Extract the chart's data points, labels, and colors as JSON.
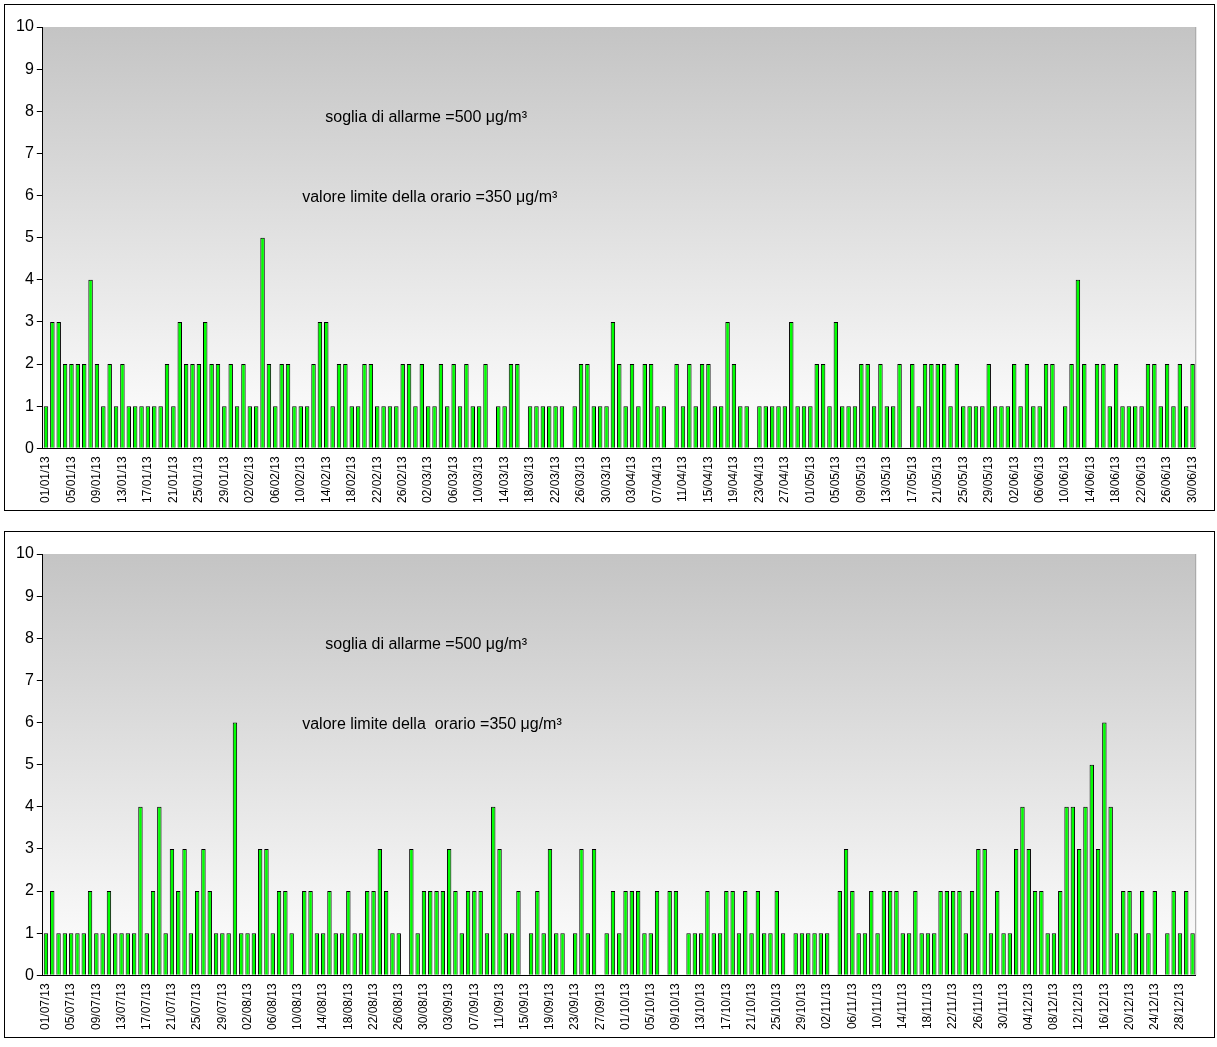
{
  "chart_data": [
    {
      "type": "bar",
      "color": "#00ff00",
      "ylim": [
        0,
        10
      ],
      "yticks": [
        0,
        1,
        2,
        3,
        4,
        5,
        6,
        7,
        8,
        9,
        10
      ],
      "annotations": [
        "soglia di allarme =500 μg/m³",
        "valore limite della orario =350 μg/m³"
      ],
      "categories": [
        "01/01/13",
        null,
        null,
        null,
        "05/01/13",
        null,
        null,
        null,
        "09/01/13",
        null,
        null,
        null,
        "13/01/13",
        null,
        null,
        null,
        "17/01/13",
        null,
        null,
        null,
        "21/01/13",
        null,
        null,
        null,
        "25/01/13",
        null,
        null,
        null,
        "29/01/13",
        null,
        null,
        null,
        "02/02/13",
        null,
        null,
        null,
        "06/02/13",
        null,
        null,
        null,
        "10/02/13",
        null,
        null,
        null,
        "14/02/13",
        null,
        null,
        null,
        "18/02/13",
        null,
        null,
        null,
        "22/02/13",
        null,
        null,
        null,
        "26/02/13",
        null,
        null,
        null,
        "02/03/13",
        null,
        null,
        null,
        "06/03/13",
        null,
        null,
        null,
        "10/03/13",
        null,
        null,
        null,
        "14/03/13",
        null,
        null,
        null,
        "18/03/13",
        null,
        null,
        null,
        "22/03/13",
        null,
        null,
        null,
        "26/03/13",
        null,
        null,
        null,
        "30/03/13",
        null,
        null,
        null,
        "03/04/13",
        null,
        null,
        null,
        "07/04/13",
        null,
        null,
        null,
        "11/04/13",
        null,
        null,
        null,
        "15/04/13",
        null,
        null,
        null,
        "19/04/13",
        null,
        null,
        null,
        "23/04/13",
        null,
        null,
        null,
        "27/04/13",
        null,
        null,
        null,
        "01/05/13",
        null,
        null,
        null,
        "05/05/13",
        null,
        null,
        null,
        "09/05/13",
        null,
        null,
        null,
        "13/05/13",
        null,
        null,
        null,
        "17/05/13",
        null,
        null,
        null,
        "21/05/13",
        null,
        null,
        null,
        "25/05/13",
        null,
        null,
        null,
        "29/05/13",
        null,
        null,
        null,
        "02/06/13",
        null,
        null,
        null,
        "06/06/13",
        null,
        null,
        null,
        "10/06/13",
        null,
        null,
        null,
        "14/06/13",
        null,
        null,
        null,
        "18/06/13",
        null,
        null,
        null,
        "22/06/13",
        null,
        null,
        null,
        "26/06/13",
        null,
        null,
        null,
        "30/06/13"
      ],
      "values": [
        1,
        3,
        3,
        2,
        2,
        2,
        2,
        4,
        2,
        1,
        2,
        1,
        2,
        1,
        1,
        1,
        1,
        1,
        1,
        2,
        1,
        3,
        2,
        2,
        2,
        3,
        2,
        2,
        1,
        2,
        1,
        2,
        1,
        1,
        5,
        2,
        1,
        2,
        2,
        1,
        1,
        1,
        2,
        3,
        3,
        1,
        2,
        2,
        1,
        1,
        2,
        2,
        1,
        1,
        1,
        1,
        2,
        2,
        1,
        2,
        1,
        1,
        2,
        1,
        2,
        1,
        2,
        1,
        1,
        2,
        null,
        1,
        1,
        2,
        2,
        null,
        1,
        1,
        1,
        1,
        1,
        1,
        null,
        1,
        2,
        2,
        1,
        1,
        1,
        3,
        2,
        1,
        2,
        1,
        2,
        2,
        1,
        1,
        null,
        2,
        1,
        2,
        1,
        2,
        2,
        1,
        1,
        3,
        2,
        1,
        1,
        null,
        1,
        1,
        1,
        1,
        1,
        3,
        1,
        1,
        1,
        2,
        2,
        1,
        3,
        1,
        1,
        1,
        2,
        2,
        1,
        2,
        1,
        1,
        2,
        null,
        2,
        1,
        2,
        2,
        2,
        2,
        1,
        2,
        1,
        1,
        1,
        1,
        2,
        1,
        1,
        1,
        2,
        1,
        2,
        1,
        1,
        2,
        2,
        null,
        1,
        2,
        4,
        2,
        null,
        2,
        2,
        1,
        2,
        1,
        1,
        1,
        1,
        2,
        2,
        1,
        2,
        1,
        2,
        1,
        2
      ]
    },
    {
      "type": "bar",
      "color": "#00ff00",
      "ylim": [
        0,
        10
      ],
      "yticks": [
        0,
        1,
        2,
        3,
        4,
        5,
        6,
        7,
        8,
        9,
        10
      ],
      "annotations": [
        "soglia di allarme =500 μg/m³",
        "valore limite della  orario =350 μg/m³"
      ],
      "categories": [
        "01/07/13",
        null,
        null,
        null,
        "05/07/13",
        null,
        null,
        null,
        "09/07/13",
        null,
        null,
        null,
        "13/07/13",
        null,
        null,
        null,
        "17/07/13",
        null,
        null,
        null,
        "21/07/13",
        null,
        null,
        null,
        "25/07/13",
        null,
        null,
        null,
        "29/07/13",
        null,
        null,
        null,
        "02/08/13",
        null,
        null,
        null,
        "06/08/13",
        null,
        null,
        null,
        "10/08/13",
        null,
        null,
        null,
        "14/08/13",
        null,
        null,
        null,
        "18/08/13",
        null,
        null,
        null,
        "22/08/13",
        null,
        null,
        null,
        "26/08/13",
        null,
        null,
        null,
        "30/08/13",
        null,
        null,
        null,
        "03/09/13",
        null,
        null,
        null,
        "07/09/13",
        null,
        null,
        null,
        "11/09/13",
        null,
        null,
        null,
        "15/09/13",
        null,
        null,
        null,
        "19/09/13",
        null,
        null,
        null,
        "23/09/13",
        null,
        null,
        null,
        "27/09/13",
        null,
        null,
        null,
        "01/10/13",
        null,
        null,
        null,
        "05/10/13",
        null,
        null,
        null,
        "09/10/13",
        null,
        null,
        null,
        "13/10/13",
        null,
        null,
        null,
        "17/10/13",
        null,
        null,
        null,
        "21/10/13",
        null,
        null,
        null,
        "25/10/13",
        null,
        null,
        null,
        "29/10/13",
        null,
        null,
        null,
        "02/11/13",
        null,
        null,
        null,
        "06/11/13",
        null,
        null,
        null,
        "10/11/13",
        null,
        null,
        null,
        "14/11/13",
        null,
        null,
        null,
        "18/11/13",
        null,
        null,
        null,
        "22/11/13",
        null,
        null,
        null,
        "26/11/13",
        null,
        null,
        null,
        "30/11/13",
        null,
        null,
        null,
        "04/12/13",
        null,
        null,
        null,
        "08/12/13",
        null,
        null,
        null,
        "12/12/13",
        null,
        null,
        null,
        "16/12/13",
        null,
        null,
        null,
        "20/12/13",
        null,
        null,
        null,
        "24/12/13",
        null,
        null,
        null,
        "28/12/13",
        null,
        null
      ],
      "values": [
        1,
        2,
        1,
        1,
        1,
        1,
        1,
        2,
        1,
        1,
        2,
        1,
        1,
        1,
        1,
        4,
        1,
        2,
        4,
        1,
        3,
        2,
        3,
        1,
        2,
        3,
        2,
        1,
        1,
        1,
        6,
        1,
        1,
        1,
        3,
        3,
        1,
        2,
        2,
        1,
        null,
        2,
        2,
        1,
        1,
        2,
        1,
        1,
        2,
        1,
        1,
        2,
        2,
        3,
        2,
        1,
        1,
        null,
        3,
        1,
        2,
        2,
        2,
        2,
        3,
        2,
        1,
        2,
        2,
        2,
        1,
        4,
        3,
        1,
        1,
        2,
        null,
        1,
        2,
        1,
        3,
        1,
        1,
        null,
        1,
        3,
        1,
        3,
        null,
        1,
        2,
        1,
        2,
        2,
        2,
        1,
        1,
        2,
        null,
        2,
        2,
        null,
        1,
        1,
        1,
        2,
        1,
        1,
        2,
        2,
        1,
        2,
        1,
        2,
        1,
        1,
        2,
        1,
        null,
        1,
        1,
        1,
        1,
        1,
        1,
        null,
        2,
        3,
        2,
        1,
        1,
        2,
        1,
        2,
        2,
        2,
        1,
        1,
        2,
        1,
        1,
        1,
        2,
        2,
        2,
        2,
        1,
        2,
        3,
        3,
        1,
        2,
        1,
        1,
        3,
        4,
        3,
        2,
        2,
        1,
        1,
        2,
        4,
        4,
        3,
        4,
        5,
        3,
        6,
        4,
        1,
        2,
        2,
        1,
        2,
        1,
        2,
        null,
        1,
        2,
        1,
        2,
        1
      ]
    }
  ]
}
